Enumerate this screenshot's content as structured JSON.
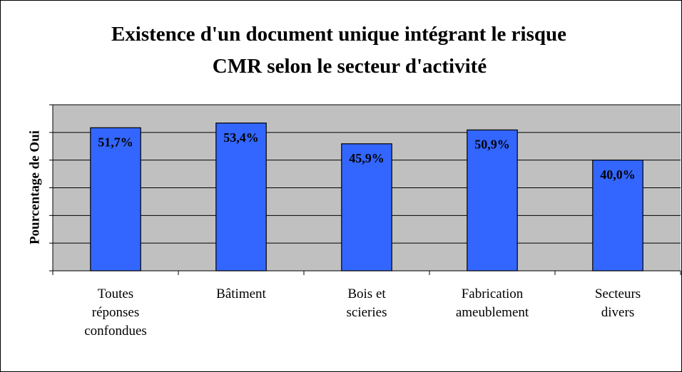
{
  "chart_data": {
    "type": "bar",
    "title": "Existence d'un document unique intégrant le risque\nCMR selon le secteur d'activité",
    "y_label": "Pourcentage de Oui",
    "categories": [
      "Toutes\nréponses\nconfondues",
      "Bâtiment",
      "Bois et\nscieries",
      "Fabrication\nameublement",
      "Secteurs\ndivers"
    ],
    "values": [
      51.7,
      53.4,
      45.9,
      50.9,
      40.0
    ],
    "value_labels": [
      "51,7%",
      "53,4%",
      "45,9%",
      "50,9%",
      "40,0%"
    ],
    "color": "#3366ff",
    "ylim": [
      0,
      60
    ],
    "yticks": [
      0,
      10,
      20,
      30,
      40,
      50,
      60
    ],
    "grid": true
  }
}
